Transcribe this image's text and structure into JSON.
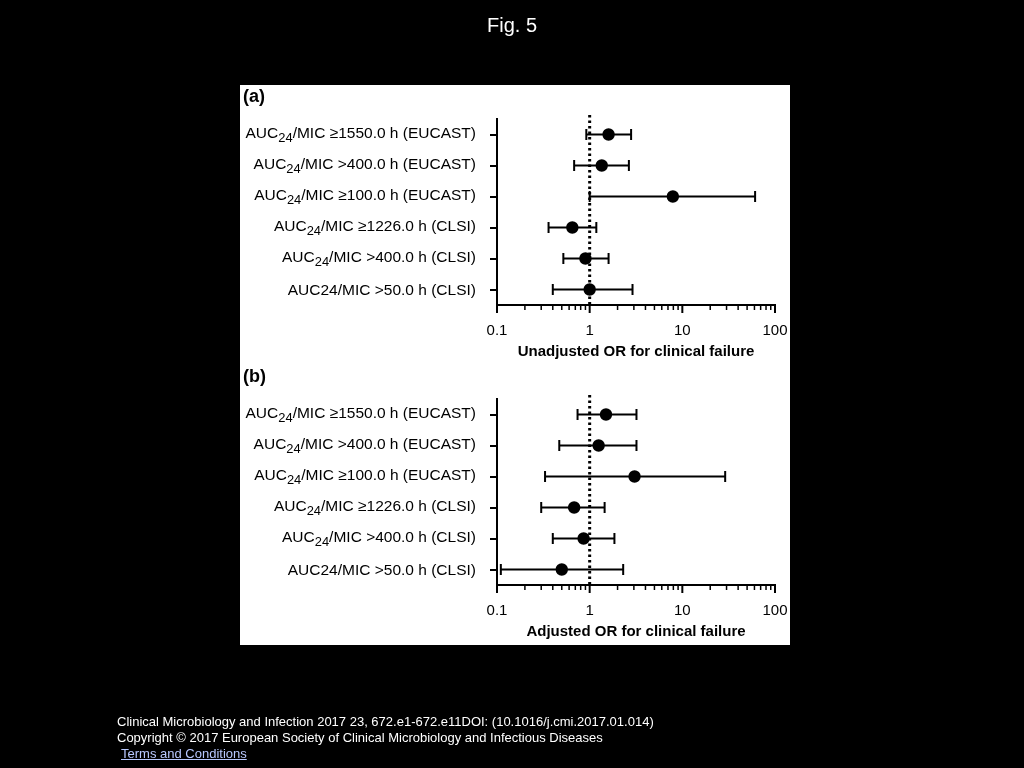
{
  "chart_data": [
    {
      "type": "scatter",
      "title": "Fig. 5",
      "subtitle": "(a)",
      "xlabel": "Unadjusted OR for clinical failure",
      "orientation": "horizontal",
      "color": "#000000",
      "marker": "circle",
      "log": "x",
      "categories": [
        "AUC$_{24}$/MIC ≥1550.0 h (EUCAST)",
        "AUC$_{24}$/MIC >400.0 h (EUCAST)",
        "AUC$_{24}$/MIC ≥100.0 h (EUCAST)",
        "AUC$_{24}$/MIC ≥1226.0 h (CLSI)",
        "AUC$_{24}$/MIC >400.0 h (CLSI)",
        "AUC24/MIC >50.0 h (CLSI)"
      ],
      "values": [
        1.6,
        1.35,
        7.9,
        0.65,
        0.9,
        1.0
      ],
      "errors": [
        [
          0.92,
          2.8
        ],
        [
          0.68,
          2.65
        ],
        [
          1.0,
          61
        ],
        [
          0.36,
          1.18
        ],
        [
          0.52,
          1.6
        ],
        [
          0.4,
          2.9
        ]
      ],
      "xlim": [
        0.1,
        100
      ],
      "xticks": [
        0.1,
        {
          "value": 0.2,
          "label": null
        },
        {
          "value": 0.3,
          "label": null
        },
        {
          "value": 0.4,
          "label": null
        },
        {
          "value": 0.5,
          "label": null
        },
        {
          "value": 0.6,
          "label": null
        },
        {
          "value": 0.7,
          "label": null
        },
        {
          "value": 0.8,
          "label": null
        },
        {
          "value": 0.9,
          "label": null
        },
        1,
        {
          "value": 2,
          "label": null
        },
        {
          "value": 3,
          "label": null
        },
        {
          "value": 4,
          "label": null
        },
        {
          "value": 5,
          "label": null
        },
        {
          "value": 6,
          "label": null
        },
        {
          "value": 7,
          "label": null
        },
        {
          "value": 8,
          "label": null
        },
        {
          "value": 9,
          "label": null
        },
        10,
        {
          "value": 20,
          "label": null
        },
        {
          "value": 30,
          "label": null
        },
        {
          "value": 40,
          "label": null
        },
        {
          "value": 50,
          "label": null
        },
        {
          "value": 60,
          "label": null
        },
        {
          "value": 70,
          "label": null
        },
        {
          "value": 80,
          "label": null
        },
        {
          "value": 90,
          "label": null
        },
        100
      ],
      "ref_lines": [
        {
          "axis": "x",
          "value": 1,
          "line_style": "dotted",
          "color": "#000000"
        }
      ]
    },
    {
      "type": "scatter",
      "subtitle": "(b)",
      "xlabel": "Adjusted OR for clinical failure",
      "orientation": "horizontal",
      "color": "#000000",
      "marker": "circle",
      "log": "x",
      "categories": [
        "AUC$_{24}$/MIC ≥1550.0 h (EUCAST)",
        "AUC$_{24}$/MIC >400.0 h (EUCAST)",
        "AUC$_{24}$/MIC ≥100.0 h (EUCAST)",
        "AUC$_{24}$/MIC ≥1226.0 h (CLSI)",
        "AUC$_{24}$/MIC >400.0 h (CLSI)",
        "AUC24/MIC >50.0 h (CLSI)"
      ],
      "values": [
        1.5,
        1.25,
        3.05,
        0.68,
        0.86,
        0.5
      ],
      "errors": [
        [
          0.74,
          3.2
        ],
        [
          0.47,
          3.2
        ],
        [
          0.33,
          29
        ],
        [
          0.3,
          1.45
        ],
        [
          0.4,
          1.85
        ],
        [
          0.11,
          2.3
        ]
      ],
      "xlim": [
        0.1,
        100
      ],
      "xticks": [
        0.1,
        {
          "value": 0.2,
          "label": null
        },
        {
          "value": 0.3,
          "label": null
        },
        {
          "value": 0.4,
          "label": null
        },
        {
          "value": 0.5,
          "label": null
        },
        {
          "value": 0.6,
          "label": null
        },
        {
          "value": 0.7,
          "label": null
        },
        {
          "value": 0.8,
          "label": null
        },
        {
          "value": 0.9,
          "label": null
        },
        1,
        {
          "value": 2,
          "label": null
        },
        {
          "value": 3,
          "label": null
        },
        {
          "value": 4,
          "label": null
        },
        {
          "value": 5,
          "label": null
        },
        {
          "value": 6,
          "label": null
        },
        {
          "value": 7,
          "label": null
        },
        {
          "value": 8,
          "label": null
        },
        {
          "value": 9,
          "label": null
        },
        10,
        {
          "value": 20,
          "label": null
        },
        {
          "value": 30,
          "label": null
        },
        {
          "value": 40,
          "label": null
        },
        {
          "value": 50,
          "label": null
        },
        {
          "value": 60,
          "label": null
        },
        {
          "value": 70,
          "label": null
        },
        {
          "value": 80,
          "label": null
        },
        {
          "value": 90,
          "label": null
        },
        100
      ],
      "ref_lines": [
        {
          "axis": "x",
          "value": 1,
          "line_style": "dotted",
          "color": "#000000"
        }
      ],
      "annotations": [
        "Clinical Microbiology and Infection 2017 23, 672.e1-672.e11DOI: (10.1016/j.cmi.2017.01.014)",
        "Copyright © 2017 European Society of Clinical Microbiology and Infectious Diseases",
        "Terms and Conditions"
      ]
    }
  ]
}
